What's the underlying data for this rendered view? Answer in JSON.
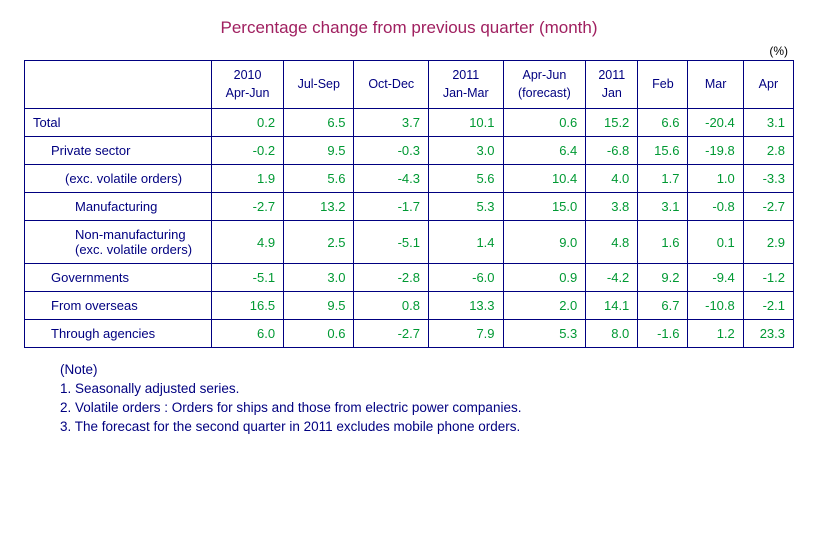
{
  "title": "Percentage change from previous quarter (month)",
  "unit_label": "(%)",
  "columns": [
    "2010\nApr-Jun",
    "Jul-Sep",
    "Oct-Dec",
    "2011\nJan-Mar",
    "Apr-Jun\n(forecast)",
    "2011\nJan",
    "Feb",
    "Mar",
    "Apr"
  ],
  "rows": [
    {
      "label": "Total",
      "indent": 0,
      "values": [
        "0.2",
        "6.5",
        "3.7",
        "10.1",
        "0.6",
        "15.2",
        "6.6",
        "-20.4",
        "3.1"
      ]
    },
    {
      "label": "Private sector",
      "indent": 1,
      "values": [
        "-0.2",
        "9.5",
        "-0.3",
        "3.0",
        "6.4",
        "-6.8",
        "15.6",
        "-19.8",
        "2.8"
      ]
    },
    {
      "label": "(exc. volatile orders)",
      "indent": 2,
      "values": [
        "1.9",
        "5.6",
        "-4.3",
        "5.6",
        "10.4",
        "4.0",
        "1.7",
        "1.0",
        "-3.3"
      ]
    },
    {
      "label": "Manufacturing",
      "indent": 3,
      "values": [
        "-2.7",
        "13.2",
        "-1.7",
        "5.3",
        "15.0",
        "3.8",
        "3.1",
        "-0.8",
        "-2.7"
      ]
    },
    {
      "label": "Non-manufacturing\n(exc. volatile orders)",
      "indent": 3,
      "values": [
        "4.9",
        "2.5",
        "-5.1",
        "1.4",
        "9.0",
        "4.8",
        "1.6",
        "0.1",
        "2.9"
      ]
    },
    {
      "label": "Governments",
      "indent": 1,
      "values": [
        "-5.1",
        "3.0",
        "-2.8",
        "-6.0",
        "0.9",
        "-4.2",
        "9.2",
        "-9.4",
        "-1.2"
      ]
    },
    {
      "label": "From overseas",
      "indent": 1,
      "values": [
        "16.5",
        "9.5",
        "0.8",
        "13.3",
        "2.0",
        "14.1",
        "6.7",
        "-10.8",
        "-2.1"
      ]
    },
    {
      "label": "Through agencies",
      "indent": 1,
      "values": [
        "6.0",
        "0.6",
        "-2.7",
        "7.9",
        "5.3",
        "8.0",
        "-1.6",
        "1.2",
        "23.3"
      ]
    }
  ],
  "notes_heading": "(Note)",
  "notes": [
    "1. Seasonally adjusted series.",
    "2. Volatile orders : Orders for ships and those from electric power companies.",
    "3. The forecast for the second quarter in 2011 excludes mobile phone orders."
  ],
  "style": {
    "title_color": "#a02060",
    "border_color": "#000080",
    "label_color": "#000080",
    "value_color": "#009933",
    "background": "#ffffff",
    "title_fontsize": 17,
    "body_fontsize": 13
  }
}
